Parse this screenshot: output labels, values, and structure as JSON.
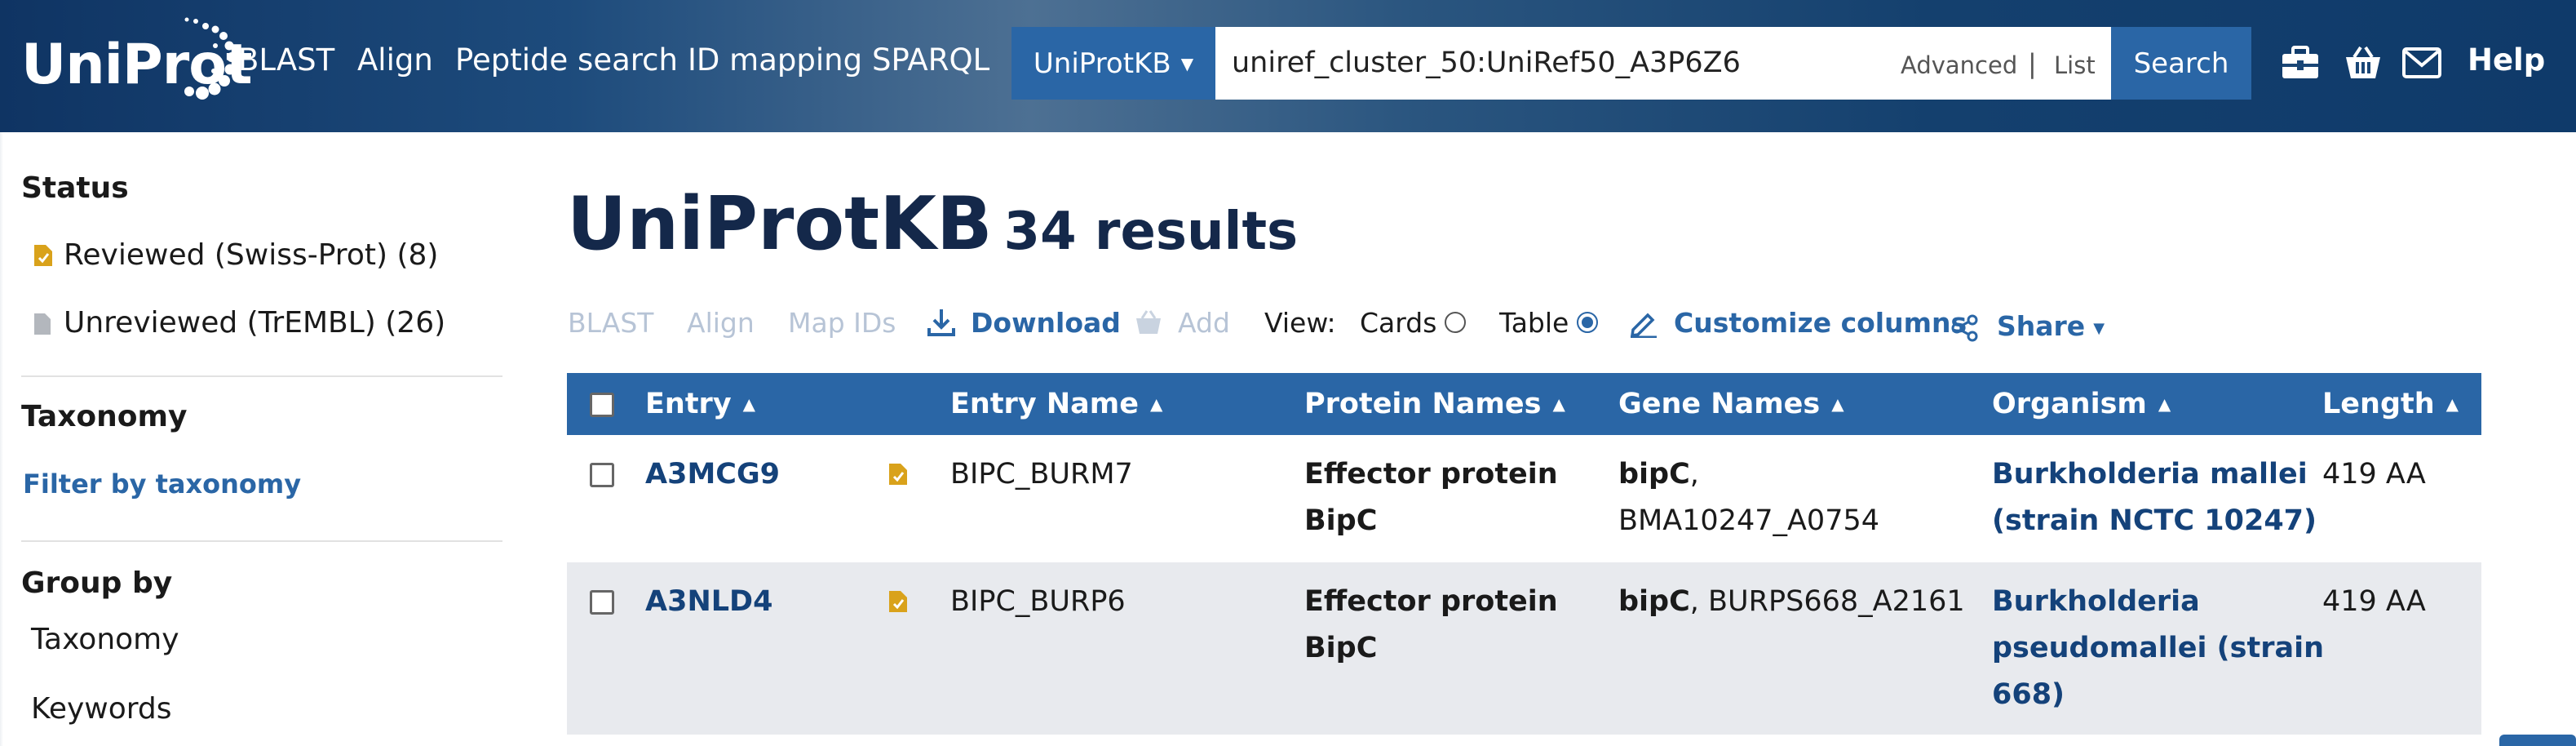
{
  "header": {
    "logo_text": "UniProt",
    "nav": [
      "BLAST",
      "Align",
      "Peptide search",
      "ID mapping",
      "SPARQL"
    ],
    "database": "UniProtKB",
    "query": "uniref_cluster_50:UniRef50_A3P6Z6",
    "advanced_label": "Advanced",
    "separator": "|",
    "list_label": "List",
    "search_label": "Search",
    "help_label": "Help",
    "icons": [
      "toolbox-icon",
      "basket-icon",
      "mail-icon"
    ]
  },
  "sidebar": {
    "status_heading": "Status",
    "reviewed": "Reviewed (Swiss-Prot) (8)",
    "unreviewed": "Unreviewed (TrEMBL) (26)",
    "taxonomy_heading": "Taxonomy",
    "filter_taxonomy": "Filter by taxonomy",
    "groupby_heading": "Group by",
    "groupby_items": [
      "Taxonomy",
      "Keywords"
    ]
  },
  "main": {
    "title": "UniProtKB",
    "result_count": "34 results",
    "toolbar": {
      "blast": "BLAST",
      "align": "Align",
      "map_ids": "Map IDs",
      "download": "Download",
      "add": "Add",
      "view_label": "View:",
      "cards": "Cards",
      "table": "Table",
      "customize": "Customize columns",
      "share": "Share"
    },
    "view_selected": "Table"
  },
  "table": {
    "columns": [
      "Entry",
      "Entry Name",
      "Protein Names",
      "Gene Names",
      "Organism",
      "Length"
    ],
    "rows": [
      {
        "entry": "A3MCG9",
        "entry_name": "BIPC_BURM7",
        "protein_line1": "Effector protein",
        "protein_line2": "BipC",
        "gene_bold": "bipC",
        "gene_sep": ",",
        "gene_rest": "BMA10247_A0754",
        "organism_line1": "Burkholderia mallei",
        "organism_line2": "(strain NCTC 10247)",
        "length": "419 AA"
      },
      {
        "entry": "A3NLD4",
        "entry_name": "BIPC_BURP6",
        "protein_line1": "Effector protein",
        "protein_line2": "BipC",
        "gene_bold": "bipC",
        "gene_sep": ", BURPS668_A2161",
        "organism_line1": "Burkholderia",
        "organism_line2": "pseudomallei (strain",
        "organism_line3": "668)",
        "length": "419 AA"
      }
    ]
  },
  "colors": {
    "header_dark": "#0f3463",
    "accent": "#2a66a6",
    "link": "#14427a",
    "reviewed_icon": "#d9a21b",
    "row_alt": "#e8eaee"
  }
}
